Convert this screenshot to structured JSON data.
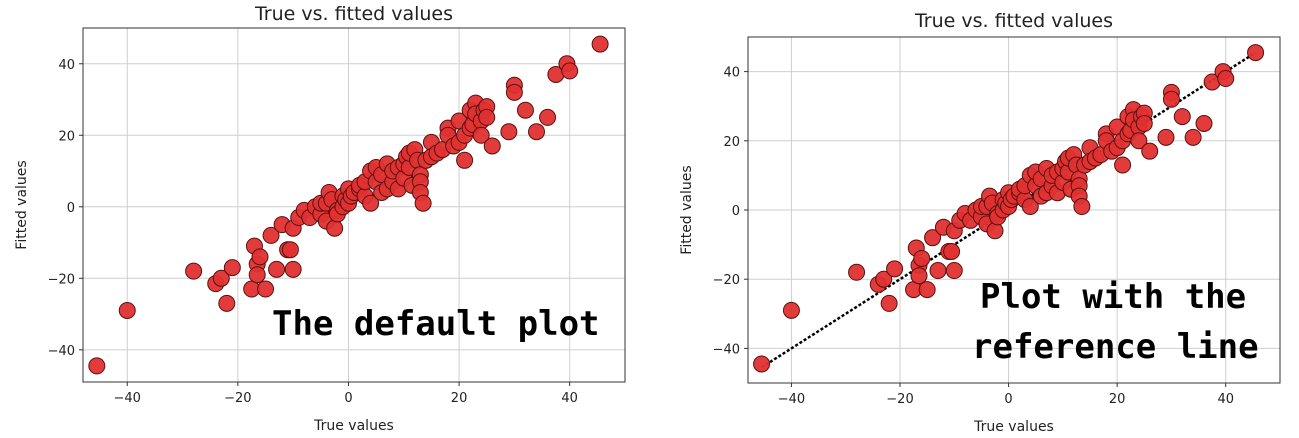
{
  "chart_data": [
    {
      "type": "scatter",
      "title": "True vs. fitted values",
      "xlabel": "True values",
      "ylabel": "Fitted values",
      "xlim": [
        -48,
        50
      ],
      "ylim": [
        -49,
        50
      ],
      "xticks": [
        -40,
        -20,
        0,
        20,
        40
      ],
      "yticks": [
        -40,
        -20,
        0,
        20,
        40
      ],
      "grid": true,
      "marker_color": "#e03030",
      "marker_edge": "#5a1010",
      "annotation": "The default plot",
      "reference_line": false,
      "x": [
        -45.5,
        -40,
        -28,
        -24,
        -23,
        -22,
        -21,
        -17.5,
        -17,
        -16.5,
        -16.5,
        -16,
        -15,
        -14,
        -13,
        -12,
        -11,
        -10.5,
        -10,
        -10,
        -9,
        -8,
        -7,
        -6,
        -5,
        -5,
        -4,
        -4,
        -3.5,
        -3,
        -2.5,
        -2,
        -2,
        -1,
        -1,
        -0.5,
        0,
        0,
        0.5,
        1,
        2,
        2,
        3,
        3,
        4,
        4,
        5,
        5,
        6,
        6,
        7,
        7,
        8,
        8,
        9,
        9,
        10,
        10,
        10.5,
        11,
        11,
        11.5,
        12,
        12.5,
        13,
        13,
        13,
        13.5,
        14,
        15,
        15,
        16,
        17,
        18,
        18,
        19,
        20,
        20,
        21,
        21,
        22,
        22,
        22.5,
        23,
        23,
        24,
        24,
        24.5,
        25,
        25,
        26,
        29,
        30,
        30,
        32,
        34,
        36,
        37.5,
        39.5,
        40,
        45.5
      ],
      "y": [
        -44.5,
        -29,
        -18,
        -21.5,
        -20,
        -27,
        -17,
        -23,
        -11,
        -16,
        -19,
        -14,
        -23,
        -8,
        -17.5,
        -5,
        -12,
        -12,
        -6,
        -17.5,
        -3,
        -1,
        -3,
        0,
        -2,
        1,
        1,
        -4,
        4,
        2,
        -6,
        -1,
        -2,
        3,
        0,
        2,
        5,
        1,
        3,
        4,
        5,
        6,
        3,
        7,
        1,
        10,
        7,
        11,
        9,
        4,
        12,
        5,
        7,
        10,
        5,
        11,
        8,
        12,
        14,
        11,
        15,
        6,
        16,
        13,
        9,
        7,
        4,
        1,
        13,
        18,
        14,
        15,
        16,
        22,
        20,
        17,
        24,
        18,
        13,
        20,
        22,
        27,
        23,
        29,
        26,
        24,
        20,
        27,
        28,
        25,
        17,
        21,
        34,
        32,
        27,
        21,
        25,
        37,
        40,
        38,
        45.5
      ]
    },
    {
      "type": "scatter",
      "title": "True vs. fitted values",
      "xlabel": "True values",
      "ylabel": "Fitted values",
      "xlim": [
        -48,
        50
      ],
      "ylim": [
        -50,
        50
      ],
      "xticks": [
        -40,
        -20,
        0,
        20,
        40
      ],
      "yticks": [
        -40,
        -20,
        0,
        20,
        40
      ],
      "grid": true,
      "marker_color": "#e03030",
      "marker_edge": "#5a1010",
      "annotation": [
        "Plot with the",
        "reference line"
      ],
      "reference_line": true,
      "x": [
        -45.5,
        -40,
        -28,
        -24,
        -23,
        -22,
        -21,
        -17.5,
        -17,
        -16.5,
        -16.5,
        -16,
        -15,
        -14,
        -13,
        -12,
        -11,
        -10.5,
        -10,
        -10,
        -9,
        -8,
        -7,
        -6,
        -5,
        -5,
        -4,
        -4,
        -3.5,
        -3,
        -2.5,
        -2,
        -2,
        -1,
        -1,
        -0.5,
        0,
        0,
        0.5,
        1,
        2,
        2,
        3,
        3,
        4,
        4,
        5,
        5,
        6,
        6,
        7,
        7,
        8,
        8,
        9,
        9,
        10,
        10,
        10.5,
        11,
        11,
        11.5,
        12,
        12.5,
        13,
        13,
        13,
        13.5,
        14,
        15,
        15,
        16,
        17,
        18,
        18,
        19,
        20,
        20,
        21,
        21,
        22,
        22,
        22.5,
        23,
        23,
        24,
        24,
        24.5,
        25,
        25,
        26,
        29,
        30,
        30,
        32,
        34,
        36,
        37.5,
        39.5,
        40,
        45.5
      ],
      "y": [
        -44.5,
        -29,
        -18,
        -21.5,
        -20,
        -27,
        -17,
        -23,
        -11,
        -16,
        -19,
        -14,
        -23,
        -8,
        -17.5,
        -5,
        -12,
        -12,
        -6,
        -17.5,
        -3,
        -1,
        -3,
        0,
        -2,
        1,
        1,
        -4,
        4,
        2,
        -6,
        -1,
        -2,
        3,
        0,
        2,
        5,
        1,
        3,
        4,
        5,
        6,
        3,
        7,
        1,
        10,
        7,
        11,
        9,
        4,
        12,
        5,
        7,
        10,
        5,
        11,
        8,
        12,
        14,
        11,
        15,
        6,
        16,
        13,
        9,
        7,
        4,
        1,
        13,
        18,
        14,
        15,
        16,
        22,
        20,
        17,
        24,
        18,
        13,
        20,
        22,
        27,
        23,
        29,
        26,
        24,
        20,
        27,
        28,
        25,
        17,
        21,
        34,
        32,
        27,
        21,
        25,
        37,
        40,
        38,
        45.5
      ]
    }
  ]
}
